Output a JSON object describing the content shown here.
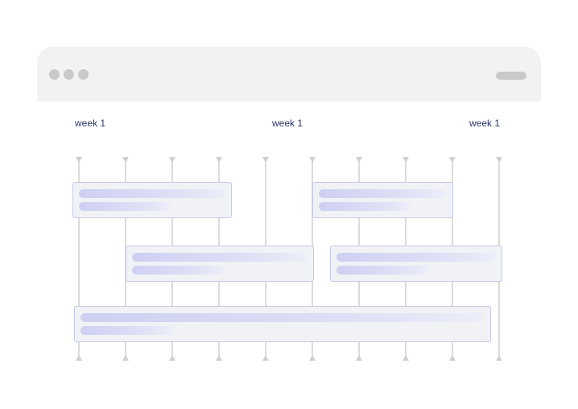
{
  "timeline": {
    "week_labels": [
      "week 1",
      "week 1",
      "week 1"
    ],
    "tick_count": 10
  },
  "window": {
    "dot_color": "#c9c9c9",
    "bar_color": "#f2f2f2"
  },
  "colors": {
    "grid_line": "#cfcfcf",
    "task_fill": "#f1f2f5",
    "task_border": "#c5c9ea",
    "placeholder_line": "#cdd0f2",
    "label_text": "#2b3566"
  }
}
